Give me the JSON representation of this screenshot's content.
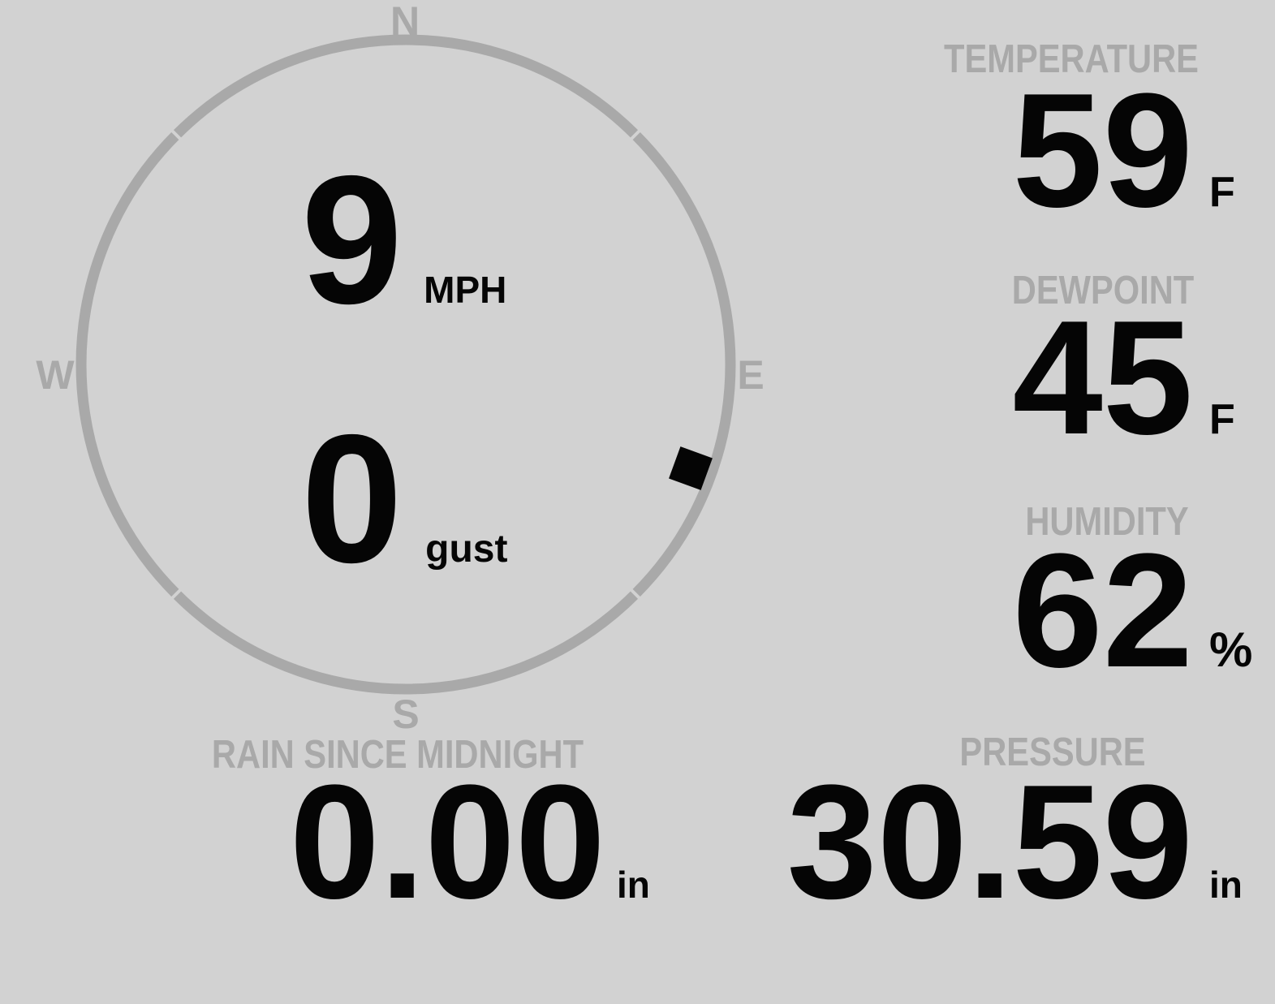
{
  "colors": {
    "background": "#d2d2d2",
    "muted": "#a9a9a9",
    "ink": "#050505"
  },
  "compass": {
    "cardinals": {
      "north": "N",
      "east": "E",
      "south": "S",
      "west": "W"
    },
    "wind_speed": {
      "value": "9",
      "unit": "MPH"
    },
    "wind_gust": {
      "value": "0",
      "unit": "gust"
    },
    "wind_direction_degrees": 110
  },
  "metrics": {
    "temperature": {
      "label": "TEMPERATURE",
      "value": "59",
      "unit": "F"
    },
    "dewpoint": {
      "label": "DEWPOINT",
      "value": "45",
      "unit": "F"
    },
    "humidity": {
      "label": "HUMIDITY",
      "value": "62",
      "unit": "%"
    },
    "rain_since_midnight": {
      "label": "RAIN SINCE MIDNIGHT",
      "value": "0.00",
      "unit": "in"
    },
    "pressure": {
      "label": "PRESSURE",
      "value": "30.59",
      "unit": "in"
    }
  }
}
